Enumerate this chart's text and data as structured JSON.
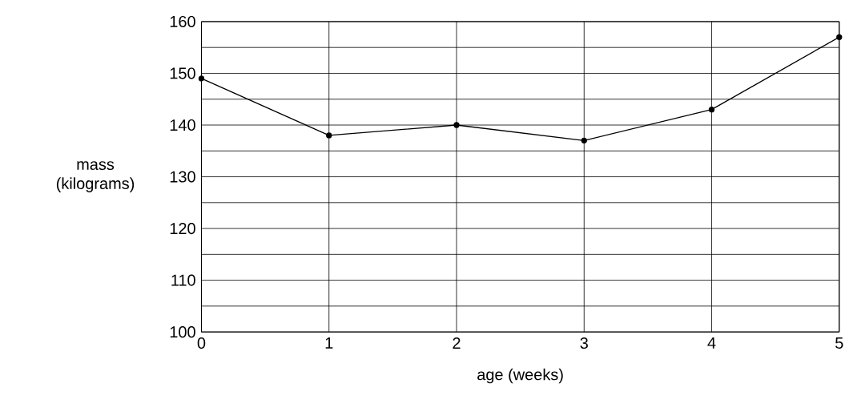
{
  "chart_data": {
    "type": "line",
    "xlabel": "age (weeks)",
    "ylabel": "mass (kilograms)",
    "x": [
      0,
      1,
      2,
      3,
      4,
      5
    ],
    "values": [
      149,
      138,
      140,
      137,
      143,
      157
    ],
    "color": "#000000",
    "marker": "circle",
    "line_style": "solid",
    "grid": true,
    "xlim": [
      0,
      5
    ],
    "xticks": [
      0,
      1,
      2,
      3,
      4,
      5
    ],
    "ylim": [
      100,
      160
    ],
    "yticks": [
      100,
      {
        "value": 105,
        "label": null
      },
      110,
      {
        "value": 115,
        "label": null
      },
      120,
      {
        "value": 125,
        "label": null
      },
      130,
      {
        "value": 135,
        "label": null
      },
      140,
      {
        "value": 145,
        "label": null
      },
      150,
      {
        "value": 155,
        "label": null
      },
      160
    ]
  }
}
